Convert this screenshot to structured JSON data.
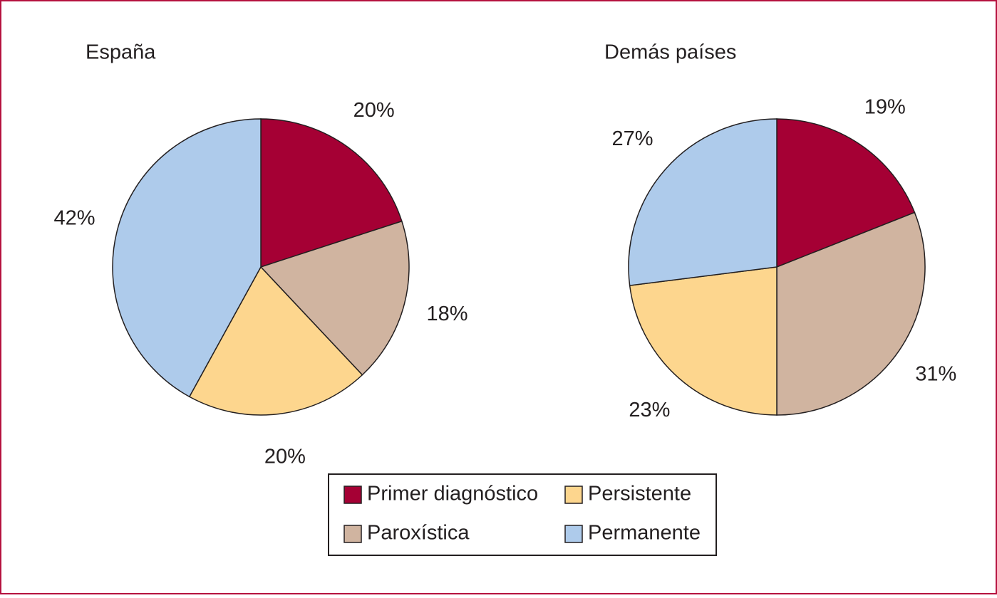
{
  "chart_data": [
    {
      "type": "pie",
      "title": "España",
      "categories": [
        "Primer diagnóstico",
        "Paroxística",
        "Persistente",
        "Permanente"
      ],
      "values": [
        20,
        18,
        20,
        42
      ],
      "value_labels": [
        "20%",
        "18%",
        "20%",
        "42%"
      ],
      "colors": [
        "#a50034",
        "#d0b4a0",
        "#fdd68e",
        "#aecbeb"
      ]
    },
    {
      "type": "pie",
      "title": "Demás países",
      "categories": [
        "Primer diagnóstico",
        "Paroxística",
        "Persistente",
        "Permanente"
      ],
      "values": [
        19,
        31,
        23,
        27
      ],
      "value_labels": [
        "19%",
        "31%",
        "23%",
        "27%"
      ],
      "colors": [
        "#a50034",
        "#d0b4a0",
        "#fdd68e",
        "#aecbeb"
      ]
    }
  ]
}
